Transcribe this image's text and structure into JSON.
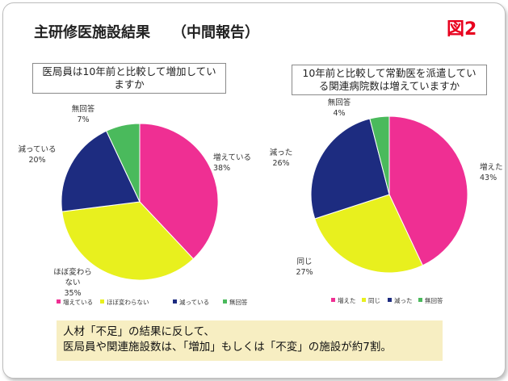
{
  "title": "主研修医施設結果　　（中間報告）",
  "figure_label": "図2",
  "chart_data": [
    {
      "type": "pie",
      "title": [
        "医局員は10年前と比較して増加してい",
        "ますか"
      ],
      "categories": [
        "増えている",
        "ほぼ変わらない",
        "減っている",
        "無回答"
      ],
      "label_lines": [
        [
          "増えている"
        ],
        [
          "ほぼ変わら",
          "ない"
        ],
        [
          "減っている"
        ],
        [
          "無回答"
        ]
      ],
      "values": [
        38,
        35,
        20,
        7
      ],
      "value_labels": [
        "38%",
        "35%",
        "20%",
        "7%"
      ],
      "colors": [
        "#ef2f93",
        "#e8f01e",
        "#1d2c80",
        "#4aba5c"
      ],
      "legend": [
        "増えている",
        "ほぼ変わらない",
        "減っている",
        "無回答"
      ],
      "legend_position": "bottom"
    },
    {
      "type": "pie",
      "title": [
        "10年前と比較して常勤医を派遣してい",
        "る関連病院数は増えていますか"
      ],
      "categories": [
        "増えた",
        "同じ",
        "減った",
        "無回答"
      ],
      "label_lines": [
        [
          "増えた"
        ],
        [
          "同じ"
        ],
        [
          "減った"
        ],
        [
          "無回答"
        ]
      ],
      "values": [
        43,
        27,
        26,
        4
      ],
      "value_labels": [
        "43%",
        "27%",
        "26%",
        "4%"
      ],
      "colors": [
        "#ef2f93",
        "#e8f01e",
        "#1d2c80",
        "#4aba5c"
      ],
      "legend": [
        "増えた",
        "同じ",
        "減った",
        "無回答"
      ],
      "legend_position": "bottom"
    }
  ],
  "note": {
    "line1": "人材「不足」の結果に反して、",
    "line2": "医局員や関連施設数は、「増加」もしくは「不変」の施設が約7割。"
  }
}
